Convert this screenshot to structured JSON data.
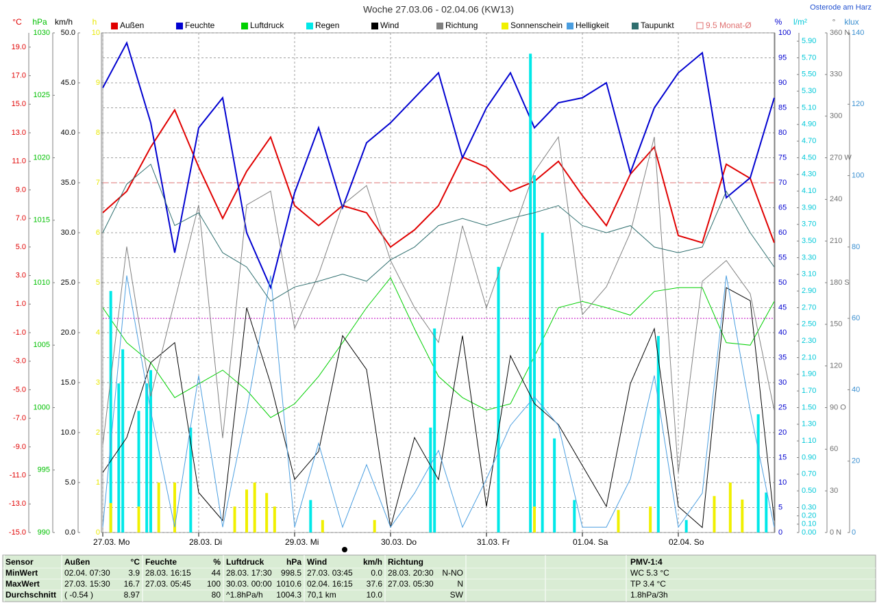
{
  "chart_data": {
    "type": "line",
    "title": "Woche 27.03.06 - 02.04.06 (KW13)",
    "location": "Osterode am Harz",
    "xlim": [
      0,
      168
    ],
    "xticks": [
      {
        "value": 0,
        "label": "27.03.  Mo"
      },
      {
        "value": 24,
        "label": "28.03.  Di"
      },
      {
        "value": 48,
        "label": "29.03.  Mi"
      },
      {
        "value": 72,
        "label": "30.03.  Do"
      },
      {
        "value": 96,
        "label": "31.03.  Fr"
      },
      {
        "value": 120,
        "label": "01.04.  Sa"
      },
      {
        "value": 144,
        "label": "02.04.  So"
      }
    ],
    "grid": "pct",
    "axes": {
      "c": {
        "unit": "°C",
        "color": "#e00000",
        "lim": [
          -15,
          20
        ],
        "ticks": [
          {
            "value": -15,
            "label": "-15.0"
          },
          {
            "value": -13,
            "label": "-13.0"
          },
          {
            "value": -11,
            "label": "-11.0"
          },
          {
            "value": -9,
            "label": "-9.0"
          },
          {
            "value": -7,
            "label": "-7.0"
          },
          {
            "value": -5,
            "label": "-5.0"
          },
          {
            "value": -3,
            "label": "-3.0"
          },
          {
            "value": -1,
            "label": "-1.0"
          },
          {
            "value": 1,
            "label": "1.0"
          },
          {
            "value": 3,
            "label": "3.0"
          },
          {
            "value": 5,
            "label": "5.0"
          },
          {
            "value": 7,
            "label": "7.0"
          },
          {
            "value": 9,
            "label": "9.0"
          },
          {
            "value": 11,
            "label": "11.0"
          },
          {
            "value": 13,
            "label": "13.0"
          },
          {
            "value": 15,
            "label": "15.0"
          },
          {
            "value": 17,
            "label": "17.0"
          },
          {
            "value": 19,
            "label": "19.0"
          }
        ]
      },
      "hpa": {
        "unit": "hPa",
        "color": "#00c000",
        "lim": [
          990,
          1030
        ],
        "ticks": [
          990,
          995,
          1000,
          1005,
          1010,
          1015,
          1020,
          1025,
          1030
        ]
      },
      "kmh": {
        "unit": "km/h",
        "color": "#000000",
        "lim": [
          0,
          50
        ],
        "ticks": [
          {
            "value": 0,
            "label": "0.0"
          },
          {
            "value": 5,
            "label": "5.0"
          },
          {
            "value": 10,
            "label": "10.0"
          },
          {
            "value": 15,
            "label": "15.0"
          },
          {
            "value": 20,
            "label": "20.0"
          },
          {
            "value": 25,
            "label": "25.0"
          },
          {
            "value": 30,
            "label": "30.0"
          },
          {
            "value": 35,
            "label": "35.0"
          },
          {
            "value": 40,
            "label": "40.0"
          },
          {
            "value": 45,
            "label": "45.0"
          },
          {
            "value": 50,
            "label": "50.0"
          }
        ]
      },
      "h": {
        "unit": "h",
        "color": "#e8e800",
        "lim": [
          0,
          10
        ],
        "ticks": [
          0,
          1,
          2,
          3,
          4,
          5,
          6,
          7,
          8,
          9,
          10
        ]
      },
      "pct": {
        "unit": "%",
        "color": "#0000d0",
        "lim": [
          0,
          100
        ],
        "ticks": [
          0,
          5,
          10,
          15,
          20,
          25,
          30,
          35,
          40,
          45,
          50,
          55,
          60,
          65,
          70,
          75,
          80,
          85,
          90,
          95,
          100
        ]
      },
      "lm2": {
        "unit": "l/m²",
        "color": "#00c8d8",
        "lim": [
          0,
          6
        ],
        "ticks": [
          {
            "value": 0,
            "label": "0.00"
          },
          {
            "value": 0.1,
            "label": "0.10"
          },
          {
            "value": 0.2,
            "label": "0.20"
          },
          {
            "value": 0.3,
            "label": "0.30"
          },
          {
            "value": 0.5,
            "label": "0.50"
          },
          {
            "value": 0.7,
            "label": "0.70"
          },
          {
            "value": 0.9,
            "label": "0.90"
          },
          {
            "value": 1.1,
            "label": "1.10"
          },
          {
            "value": 1.3,
            "label": "1.30"
          },
          {
            "value": 1.5,
            "label": "1.50"
          },
          {
            "value": 1.7,
            "label": "1.70"
          },
          {
            "value": 1.9,
            "label": "1.90"
          },
          {
            "value": 2.1,
            "label": "2.10"
          },
          {
            "value": 2.3,
            "label": "2.30"
          },
          {
            "value": 2.5,
            "label": "2.50"
          },
          {
            "value": 2.7,
            "label": "2.70"
          },
          {
            "value": 2.9,
            "label": "2.90"
          },
          {
            "value": 3.1,
            "label": "3.10"
          },
          {
            "value": 3.3,
            "label": "3.30"
          },
          {
            "value": 3.5,
            "label": "3.50"
          },
          {
            "value": 3.7,
            "label": "3.70"
          },
          {
            "value": 3.9,
            "label": "3.90"
          },
          {
            "value": 4.1,
            "label": "4.10"
          },
          {
            "value": 4.3,
            "label": "4.30"
          },
          {
            "value": 4.5,
            "label": "4.50"
          },
          {
            "value": 4.7,
            "label": "4.70"
          },
          {
            "value": 4.9,
            "label": "4.90"
          },
          {
            "value": 5.1,
            "label": "5.10"
          },
          {
            "value": 5.3,
            "label": "5.30"
          },
          {
            "value": 5.5,
            "label": "5.50"
          },
          {
            "value": 5.7,
            "label": "5.70"
          },
          {
            "value": 5.9,
            "label": "5.90"
          }
        ]
      },
      "deg": {
        "unit": "°",
        "color": "#707070",
        "lim": [
          0,
          360
        ],
        "ticks": [
          {
            "value": 0,
            "label": "0  N"
          },
          30,
          60,
          {
            "value": 90,
            "label": "90  O"
          },
          120,
          150,
          {
            "value": 180,
            "label": "180  S"
          },
          210,
          240,
          {
            "value": 270,
            "label": "270  W"
          },
          300,
          330,
          {
            "value": 360,
            "label": "360  N"
          }
        ]
      },
      "klux": {
        "unit": "klux",
        "color": "#3a8fd0",
        "lim": [
          0,
          140
        ],
        "ticks": [
          0,
          20,
          40,
          60,
          80,
          100,
          120,
          140
        ]
      }
    },
    "x": [
      0,
      6,
      12,
      18,
      24,
      30,
      36,
      42,
      48,
      54,
      60,
      66,
      72,
      78,
      84,
      90,
      96,
      102,
      108,
      114,
      120,
      126,
      132,
      138,
      144,
      150,
      156,
      162,
      168
    ],
    "series": [
      {
        "name": "Außen",
        "color": "#e00000",
        "axis": "c",
        "kind": "line",
        "values": [
          7.4,
          8.9,
          12.0,
          14.6,
          10.6,
          7.0,
          10.3,
          12.7,
          7.9,
          6.5,
          7.9,
          7.4,
          5.0,
          6.2,
          7.9,
          11.3,
          10.6,
          8.9,
          9.6,
          11.0,
          8.6,
          6.5,
          10.1,
          12.0,
          5.8,
          5.3,
          10.8,
          9.8,
          5.3
        ]
      },
      {
        "name": "Feuchte",
        "color": "#0000d0",
        "axis": "pct",
        "kind": "line",
        "values": [
          89,
          98,
          82,
          56,
          81,
          87,
          60,
          49,
          68,
          81,
          65,
          78,
          82,
          87,
          92,
          75,
          85,
          92,
          81,
          86,
          87,
          90,
          72,
          85,
          92,
          96,
          67,
          71,
          87
        ]
      },
      {
        "name": "Luftdruck",
        "color": "#00d000",
        "axis": "hpa",
        "kind": "line",
        "values": [
          1008,
          1005.2,
          1003.6,
          1000.8,
          1001.9,
          1003.0,
          1001.4,
          999.2,
          1000.3,
          1002.5,
          1005.2,
          1008,
          1010.4,
          1006.3,
          1002.5,
          1000.8,
          999.8,
          1000.3,
          1004.1,
          1008,
          1008.5,
          1008,
          1007.4,
          1009.3,
          1009.6,
          1009.6,
          1005.2,
          1005,
          1008.5
        ]
      },
      {
        "name": "Regen",
        "color": "#00e8e8",
        "axis": "lm2",
        "kind": "bar",
        "x": [
          2,
          4,
          5,
          9,
          11,
          12,
          22,
          52,
          82,
          83,
          99,
          107,
          108,
          110,
          113,
          118,
          139,
          146,
          164,
          166
        ],
        "values": [
          2.9,
          1.79,
          2.2,
          1.46,
          1.79,
          1.95,
          1.26,
          0.39,
          1.26,
          2.45,
          3.19,
          5.75,
          4.29,
          3.6,
          1.13,
          0.39,
          2.36,
          0.15,
          1.42,
          0.48
        ]
      },
      {
        "name": "Wind",
        "color": "#000000",
        "axis": "kmh",
        "kind": "line",
        "values": [
          6.0,
          9.5,
          17.0,
          19.0,
          4.0,
          1.2,
          22.5,
          14.9,
          5.3,
          8.1,
          19.7,
          16.3,
          0.5,
          9.5,
          5.3,
          19.7,
          2.6,
          17.7,
          12.9,
          10.8,
          6.7,
          2.6,
          14.9,
          20.4,
          2.6,
          0.5,
          24.5,
          23.2,
          1.2
        ]
      },
      {
        "name": "Richtung",
        "color": "#808080",
        "axis": "deg",
        "kind": "line",
        "values": [
          63,
          206,
          98,
          167,
          236,
          68,
          236,
          246,
          147,
          186,
          236,
          250,
          196,
          162,
          137,
          221,
          162,
          211,
          260,
          285,
          157,
          177,
          216,
          285,
          43,
          181,
          196,
          172,
          88
        ]
      },
      {
        "name": "Sonnenschein",
        "color": "#f0f000",
        "axis": "h",
        "kind": "bar",
        "x": [
          2,
          9,
          14,
          18,
          33,
          36,
          38,
          41,
          43,
          55,
          68,
          108,
          129,
          137,
          153,
          157,
          160
        ],
        "values": [
          0.59,
          0.52,
          1.0,
          1.0,
          0.52,
          0.86,
          1.0,
          0.79,
          0.52,
          0.25,
          0.25,
          0.52,
          0.45,
          0.52,
          0.73,
          1.0,
          0.66
        ]
      },
      {
        "name": "Helligkeit",
        "color": "#4a9ee0",
        "axis": "klux",
        "kind": "line",
        "values": [
          1.5,
          72,
          34,
          1.5,
          44,
          1.5,
          34,
          72,
          1.5,
          25,
          1.5,
          19,
          1.5,
          11,
          23,
          1.5,
          15,
          30,
          38,
          30,
          1.5,
          1.5,
          15,
          44,
          1.5,
          11,
          72,
          34,
          1.5
        ]
      },
      {
        "name": "Taupunkt",
        "color": "#2f6f6f",
        "axis": "c",
        "kind": "line",
        "values": [
          6.0,
          9.4,
          10.8,
          6.5,
          7.4,
          4.6,
          3.6,
          1.2,
          2.2,
          2.6,
          3.1,
          2.6,
          4.1,
          5.0,
          6.5,
          7.0,
          6.5,
          7.0,
          7.4,
          7.9,
          6.5,
          6.0,
          6.5,
          5.0,
          4.6,
          5.0,
          8.9,
          6.0,
          3.6
        ]
      }
    ],
    "reference_lines": [
      {
        "value": 9.5,
        "label": "9.5 Monat-Ø",
        "axis": "c",
        "color": "#e07070"
      },
      {
        "value": 0,
        "axis": "c",
        "color": "#c000c0"
      }
    ]
  },
  "table": {
    "sensor": {
      "header": "Sensor",
      "rows": [
        "MinWert",
        "MaxWert",
        "Durchschnitt"
      ]
    },
    "columns": [
      {
        "header": [
          "Außen",
          "°C"
        ],
        "rows": [
          [
            "02.04.  07:30",
            "3.9"
          ],
          [
            "27.03.  15:30",
            "16.7"
          ],
          [
            "( -0.54 )",
            "8.97"
          ]
        ]
      },
      {
        "header": [
          "Feuchte",
          "%"
        ],
        "rows": [
          [
            "28.03.  16:15",
            "44"
          ],
          [
            "27.03.  05:45",
            "100"
          ],
          [
            null,
            "80"
          ]
        ]
      },
      {
        "header": [
          "Luftdruck",
          "hPa"
        ],
        "rows": [
          [
            "28.03.  17:30",
            "998.5"
          ],
          [
            "30.03.  00:00",
            "1010.6"
          ],
          [
            "^1.8hPa/h",
            "1004.3"
          ]
        ]
      },
      {
        "header": [
          "Wind",
          "km/h"
        ],
        "rows": [
          [
            "27.03.  03:45",
            "0.0"
          ],
          [
            "02.04.  16:15",
            "37.6"
          ],
          [
            "70,1 km",
            "10.0"
          ]
        ]
      },
      {
        "header": [
          "Richtung",
          null
        ],
        "rows": [
          [
            "28.03.  20:30",
            "N-NO"
          ],
          [
            "27.03.  05:30",
            "N"
          ],
          [
            null,
            "SW"
          ]
        ]
      }
    ],
    "pmv": {
      "header": "PMV-1:4",
      "rows": [
        "WC 5.3 °C",
        "TP 3.4 °C",
        "1.8hPa/3h"
      ]
    }
  }
}
